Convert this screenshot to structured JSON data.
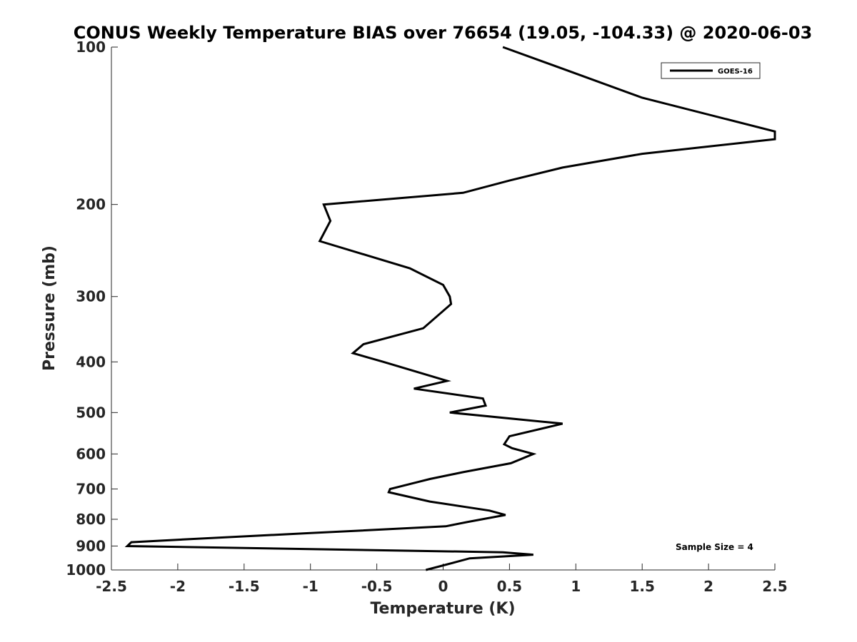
{
  "chart_data": {
    "type": "line",
    "title": "CONUS Weekly Temperature BIAS over 76654 (19.05, -104.33) @ 2020-06-03",
    "xlabel": "Temperature (K)",
    "ylabel": "Pressure (mb)",
    "xlim": [
      -2.5,
      2.5
    ],
    "ylim": [
      1000,
      100
    ],
    "y_scale": "log",
    "y_reversed": true,
    "x_ticks": [
      -2.5,
      -2,
      -1.5,
      -1,
      -0.5,
      0,
      0.5,
      1,
      1.5,
      2,
      2.5
    ],
    "x_tick_labels": [
      "-2.5",
      "-2",
      "-1.5",
      "-1",
      "-0.5",
      "0",
      "0.5",
      "1",
      "1.5",
      "2",
      "2.5"
    ],
    "y_ticks": [
      100,
      200,
      300,
      400,
      500,
      600,
      700,
      800,
      900,
      1000
    ],
    "y_tick_labels": [
      "100",
      "200",
      "300",
      "400",
      "500",
      "600",
      "700",
      "800",
      "900",
      "1000"
    ],
    "grid": false,
    "legend_position": "top-right",
    "line_color": "#000000",
    "series": [
      {
        "name": "GOES-16",
        "points": [
          [
            0.45,
            100
          ],
          [
            0.9,
            110
          ],
          [
            1.5,
            125
          ],
          [
            2.5,
            145
          ],
          [
            2.5,
            150
          ],
          [
            1.5,
            160
          ],
          [
            0.9,
            170
          ],
          [
            0.5,
            180
          ],
          [
            0.15,
            190
          ],
          [
            -0.9,
            200
          ],
          [
            -0.85,
            215
          ],
          [
            -0.93,
            235
          ],
          [
            -0.25,
            265
          ],
          [
            0.0,
            285
          ],
          [
            0.05,
            300
          ],
          [
            0.06,
            310
          ],
          [
            -0.15,
            345
          ],
          [
            -0.6,
            370
          ],
          [
            -0.68,
            385
          ],
          [
            -0.45,
            400
          ],
          [
            0.03,
            435
          ],
          [
            -0.22,
            450
          ],
          [
            0.3,
            470
          ],
          [
            0.32,
            485
          ],
          [
            0.05,
            500
          ],
          [
            0.9,
            525
          ],
          [
            0.5,
            555
          ],
          [
            0.46,
            575
          ],
          [
            0.52,
            585
          ],
          [
            0.68,
            600
          ],
          [
            0.51,
            625
          ],
          [
            0.15,
            650
          ],
          [
            -0.1,
            670
          ],
          [
            -0.2,
            680
          ],
          [
            -0.4,
            700
          ],
          [
            -0.41,
            710
          ],
          [
            -0.1,
            740
          ],
          [
            0.35,
            770
          ],
          [
            0.47,
            785
          ],
          [
            0.18,
            810
          ],
          [
            0.02,
            825
          ],
          [
            -1.0,
            850
          ],
          [
            -1.8,
            870
          ],
          [
            -2.35,
            885
          ],
          [
            -2.38,
            900
          ],
          [
            0.45,
            925
          ],
          [
            0.68,
            935
          ],
          [
            0.2,
            950
          ],
          [
            0.1,
            965
          ],
          [
            -0.13,
            1000
          ]
        ]
      }
    ],
    "annotation": "Sample Size = 4"
  }
}
